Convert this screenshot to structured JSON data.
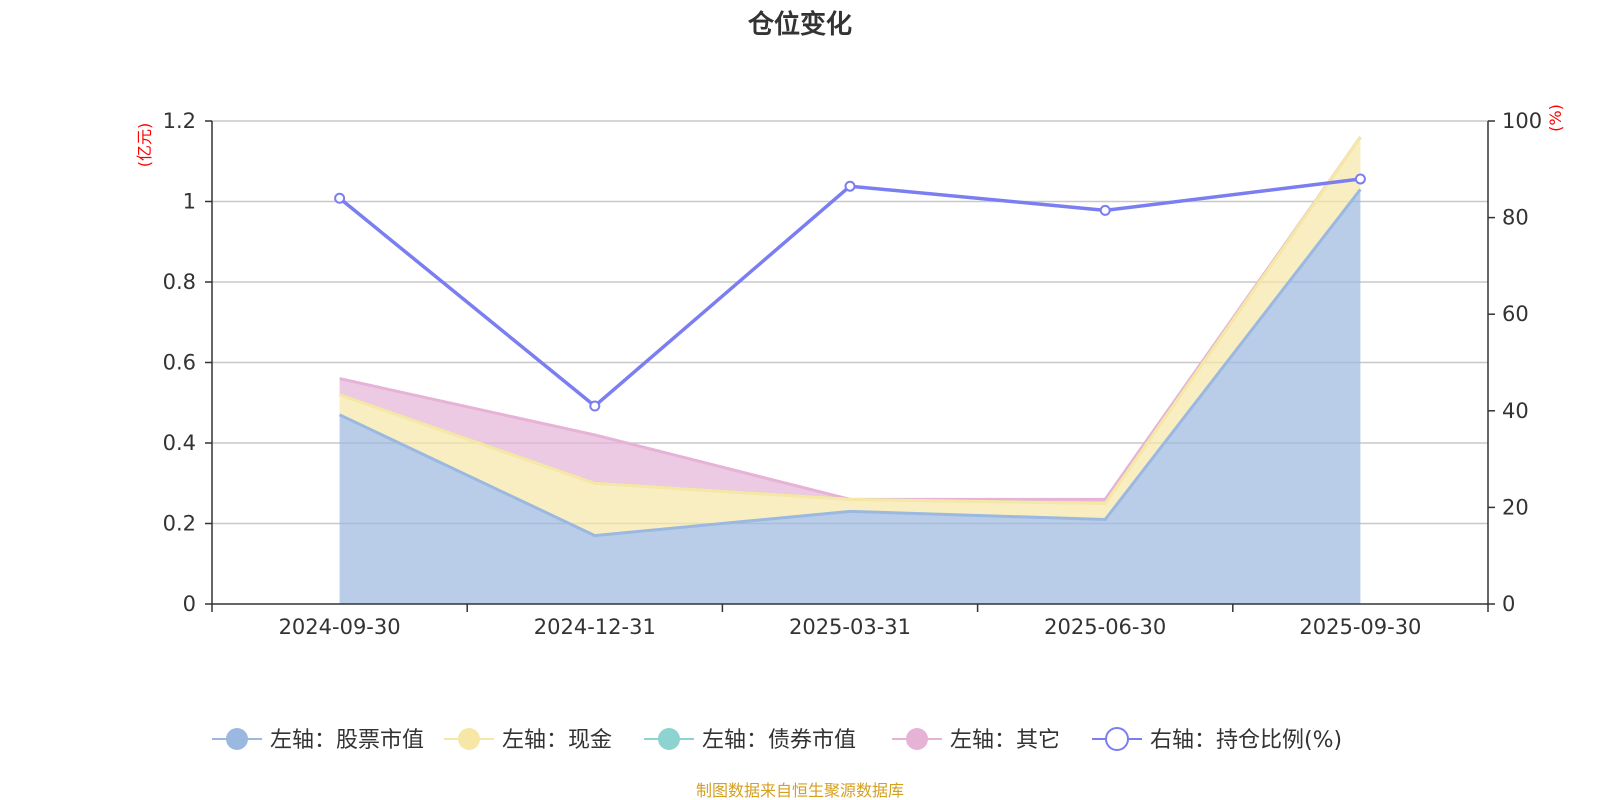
{
  "chart_data": {
    "type": "area",
    "title": "仓位变化",
    "categories": [
      "2024-09-30",
      "2024-12-31",
      "2025-03-31",
      "2025-06-30",
      "2025-09-30"
    ],
    "left_axis": {
      "unit": "(亿元)",
      "range": [
        0,
        1.2
      ],
      "ticks": [
        "0",
        "0.2",
        "0.4",
        "0.6",
        "0.8",
        "1",
        "1.2"
      ]
    },
    "right_axis": {
      "unit": "(%)",
      "range": [
        0,
        100
      ],
      "ticks": [
        "0",
        "20",
        "40",
        "60",
        "80",
        "100"
      ]
    },
    "stacked_series": [
      {
        "name": "左轴：股票市值",
        "values": [
          0.47,
          0.17,
          0.23,
          0.21,
          1.03
        ],
        "color": "#9bb8e0"
      },
      {
        "name": "左轴：现金",
        "values": [
          0.05,
          0.13,
          0.03,
          0.04,
          0.13
        ],
        "color": "#f7e7a6"
      },
      {
        "name": "左轴：债券市值",
        "values": [
          0,
          0,
          0,
          0,
          0
        ],
        "color": "#8dd3d0"
      },
      {
        "name": "左轴：其它",
        "values": [
          0.04,
          0.12,
          0.0,
          0.01,
          0.0
        ],
        "color": "#e6b3d7"
      }
    ],
    "line_series": {
      "name": "右轴：持仓比例(%)",
      "values": [
        84,
        41,
        86.5,
        81.5,
        88
      ],
      "color": "#7b7ef0"
    },
    "grid": true,
    "legend_position": "bottom"
  },
  "source_note": "制图数据来自恒生聚源数据库"
}
